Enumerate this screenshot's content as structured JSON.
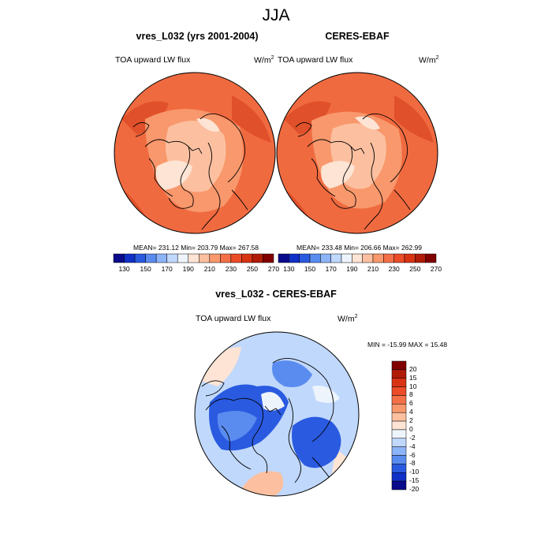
{
  "title": "JJA",
  "panels": [
    {
      "title": "vres_L032 (yrs 2001-2004)",
      "variable": "TOA upward LW flux",
      "units": "W/m",
      "units_exp": "2",
      "stats": "MEAN= 231.12  Min= 203.79  Max= 267.58"
    },
    {
      "title": "CERES-EBAF",
      "variable": "TOA upward LW flux",
      "units": "W/m",
      "units_exp": "2",
      "stats": "MEAN= 233.48  Min= 206.66  Max= 262.99"
    }
  ],
  "difference": {
    "title": "vres_L032 - CERES-EBAF",
    "variable": "TOA upward LW flux",
    "units": "W/m",
    "units_exp": "2",
    "stats": "MIN = -15.99 MAX =  15.48"
  },
  "colorbar_abs": {
    "labels": [
      "130",
      "150",
      "170",
      "190",
      "210",
      "230",
      "250",
      "270"
    ],
    "colors": [
      "#0a0a8c",
      "#1030c8",
      "#2a5ae0",
      "#5a8cf0",
      "#8cb4f8",
      "#c0d8fc",
      "#eef4fc",
      "#fde4d4",
      "#fcc0a0",
      "#f8986c",
      "#f47048",
      "#ec4c28",
      "#d83414",
      "#b01c08",
      "#800000"
    ]
  },
  "colorbar_diff": {
    "labels": [
      "20",
      "15",
      "10",
      "8",
      "6",
      "4",
      "2",
      "0",
      "-2",
      "-4",
      "-6",
      "-8",
      "-10",
      "-15",
      "-20"
    ],
    "colors": [
      "#800000",
      "#b01c08",
      "#d83414",
      "#ec4c28",
      "#f47048",
      "#f8986c",
      "#fcc0a0",
      "#fde4d4",
      "#eef4fc",
      "#c0d8fc",
      "#8cb4f8",
      "#5a8cf0",
      "#2a5ae0",
      "#1030c8",
      "#0a0a8c"
    ]
  },
  "map_colors": {
    "abs_base": "#f06a40",
    "abs_mid": "#f8986c",
    "abs_light": "#fcc0a0",
    "abs_pale": "#fde4d4",
    "abs_dark": "#e0502a",
    "diff_base": "#c0d8fc",
    "diff_blue": "#2a5ae0",
    "diff_mid": "#5a8cf0",
    "diff_pale": "#eef4fc",
    "diff_pink": "#fde4d4",
    "diff_salmon": "#fcc0a0"
  }
}
